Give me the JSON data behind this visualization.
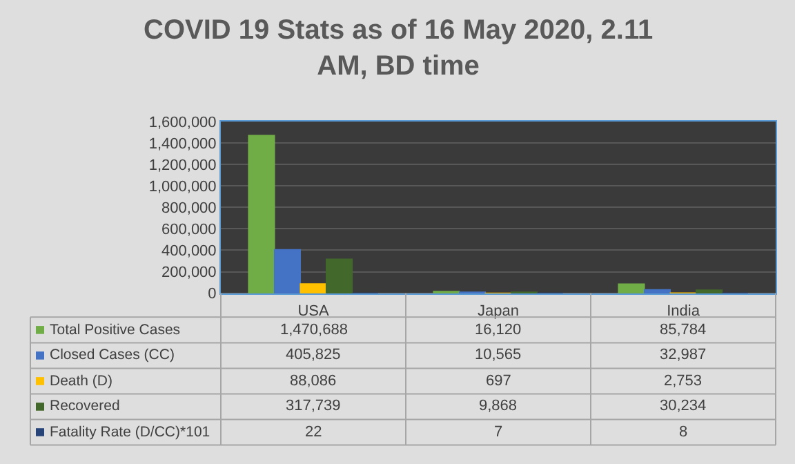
{
  "chart_data": {
    "type": "bar",
    "title": "COVID 19 Stats as of 16 May 2020, 2.11 AM, BD time",
    "categories": [
      "USA",
      "Japan",
      "India"
    ],
    "series": [
      {
        "name": "Total Positive Cases",
        "color": "#70ad47",
        "values": [
          1470688,
          16120,
          85784
        ],
        "value_labels": [
          "1,470,688",
          "16,120",
          "85,784"
        ]
      },
      {
        "name": "Closed Cases (CC)",
        "color": "#4472c4",
        "values": [
          405825,
          10565,
          32987
        ],
        "value_labels": [
          "405,825",
          "10,565",
          "32,987"
        ]
      },
      {
        "name": "Death (D)",
        "color": "#ffc000",
        "values": [
          88086,
          697,
          2753
        ],
        "value_labels": [
          "88,086",
          "697",
          "2,753"
        ]
      },
      {
        "name": "Recovered",
        "color": "#43682b",
        "values": [
          317739,
          9868,
          30234
        ],
        "value_labels": [
          "317,739",
          "9,868",
          "30,234"
        ]
      },
      {
        "name": "Fatality Rate (D/CC)*101",
        "color": "#264478",
        "values": [
          22,
          7,
          8
        ],
        "value_labels": [
          "22",
          "7",
          "8"
        ]
      }
    ],
    "ylim": [
      0,
      1600000
    ],
    "yticks": [
      {
        "value": 0,
        "label": "0"
      },
      {
        "value": 200000,
        "label": "200,000"
      },
      {
        "value": 400000,
        "label": "400,000"
      },
      {
        "value": 600000,
        "label": "600,000"
      },
      {
        "value": 800000,
        "label": "800,000"
      },
      {
        "value": 1000000,
        "label": "1,000,000"
      },
      {
        "value": 1200000,
        "label": "1,200,000"
      },
      {
        "value": 1400000,
        "label": "1,400,000"
      },
      {
        "value": 1600000,
        "label": "1,600,000"
      }
    ],
    "grid": "y",
    "legend": "bottom"
  }
}
